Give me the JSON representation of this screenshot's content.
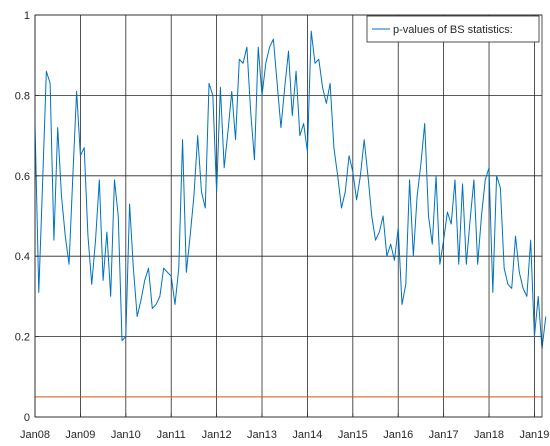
{
  "chart_data": {
    "type": "line",
    "xlim": [
      "2008-01",
      "2019-03"
    ],
    "ylim": [
      0,
      1
    ],
    "grid": true,
    "legend_placement": "top-right",
    "x_ticks": [
      "Jan08",
      "Jan09",
      "Jan10",
      "Jan11",
      "Jan12",
      "Jan13",
      "Jan14",
      "Jan15",
      "Jan16",
      "Jan17",
      "Jan18",
      "Jan19"
    ],
    "y_ticks": [
      "0",
      "0.2",
      "0.4",
      "0.6",
      "0.8",
      "1"
    ],
    "series": [
      {
        "name": "p-values of BS statistics:",
        "color": "#0072BD",
        "in_legend": true,
        "points": [
          [
            "2008-01",
            0.73
          ],
          [
            "2008-02",
            0.31
          ],
          [
            "2008-03",
            0.58
          ],
          [
            "2008-04",
            0.86
          ],
          [
            "2008-05",
            0.83
          ],
          [
            "2008-06",
            0.44
          ],
          [
            "2008-07",
            0.72
          ],
          [
            "2008-08",
            0.55
          ],
          [
            "2008-09",
            0.45
          ],
          [
            "2008-10",
            0.38
          ],
          [
            "2008-11",
            0.6
          ],
          [
            "2008-12",
            0.81
          ],
          [
            "2009-01",
            0.65
          ],
          [
            "2009-02",
            0.67
          ],
          [
            "2009-03",
            0.45
          ],
          [
            "2009-04",
            0.33
          ],
          [
            "2009-05",
            0.44
          ],
          [
            "2009-06",
            0.59
          ],
          [
            "2009-07",
            0.34
          ],
          [
            "2009-08",
            0.46
          ],
          [
            "2009-09",
            0.3
          ],
          [
            "2009-10",
            0.59
          ],
          [
            "2009-11",
            0.5
          ],
          [
            "2009-12",
            0.19
          ],
          [
            "2010-01",
            0.2
          ],
          [
            "2010-02",
            0.53
          ],
          [
            "2010-03",
            0.37
          ],
          [
            "2010-04",
            0.25
          ],
          [
            "2010-05",
            0.29
          ],
          [
            "2010-06",
            0.34
          ],
          [
            "2010-07",
            0.37
          ],
          [
            "2010-08",
            0.27
          ],
          [
            "2010-09",
            0.28
          ],
          [
            "2010-10",
            0.3
          ],
          [
            "2010-11",
            0.37
          ],
          [
            "2010-12",
            0.36
          ],
          [
            "2011-01",
            0.35
          ],
          [
            "2011-02",
            0.28
          ],
          [
            "2011-03",
            0.37
          ],
          [
            "2011-04",
            0.69
          ],
          [
            "2011-05",
            0.36
          ],
          [
            "2011-06",
            0.45
          ],
          [
            "2011-07",
            0.55
          ],
          [
            "2011-08",
            0.7
          ],
          [
            "2011-09",
            0.56
          ],
          [
            "2011-10",
            0.52
          ],
          [
            "2011-11",
            0.83
          ],
          [
            "2011-12",
            0.8
          ],
          [
            "2012-01",
            0.56
          ],
          [
            "2012-02",
            0.82
          ],
          [
            "2012-03",
            0.62
          ],
          [
            "2012-04",
            0.71
          ],
          [
            "2012-05",
            0.81
          ],
          [
            "2012-06",
            0.69
          ],
          [
            "2012-07",
            0.89
          ],
          [
            "2012-08",
            0.88
          ],
          [
            "2012-09",
            0.92
          ],
          [
            "2012-10",
            0.76
          ],
          [
            "2012-11",
            0.64
          ],
          [
            "2012-12",
            0.92
          ],
          [
            "2013-01",
            0.8
          ],
          [
            "2013-02",
            0.88
          ],
          [
            "2013-03",
            0.92
          ],
          [
            "2013-04",
            0.94
          ],
          [
            "2013-05",
            0.83
          ],
          [
            "2013-06",
            0.72
          ],
          [
            "2013-07",
            0.82
          ],
          [
            "2013-08",
            0.91
          ],
          [
            "2013-09",
            0.75
          ],
          [
            "2013-10",
            0.86
          ],
          [
            "2013-11",
            0.7
          ],
          [
            "2013-12",
            0.73
          ],
          [
            "2014-01",
            0.66
          ],
          [
            "2014-02",
            0.96
          ],
          [
            "2014-03",
            0.88
          ],
          [
            "2014-04",
            0.89
          ],
          [
            "2014-05",
            0.82
          ],
          [
            "2014-06",
            0.78
          ],
          [
            "2014-07",
            0.83
          ],
          [
            "2014-08",
            0.67
          ],
          [
            "2014-09",
            0.6
          ],
          [
            "2014-10",
            0.52
          ],
          [
            "2014-11",
            0.56
          ],
          [
            "2014-12",
            0.65
          ],
          [
            "2015-01",
            0.61
          ],
          [
            "2015-02",
            0.54
          ],
          [
            "2015-03",
            0.6
          ],
          [
            "2015-04",
            0.69
          ],
          [
            "2015-05",
            0.6
          ],
          [
            "2015-06",
            0.5
          ],
          [
            "2015-07",
            0.44
          ],
          [
            "2015-08",
            0.46
          ],
          [
            "2015-09",
            0.5
          ],
          [
            "2015-10",
            0.4
          ],
          [
            "2015-11",
            0.43
          ],
          [
            "2015-12",
            0.39
          ],
          [
            "2016-01",
            0.47
          ],
          [
            "2016-02",
            0.28
          ],
          [
            "2016-03",
            0.33
          ],
          [
            "2016-04",
            0.59
          ],
          [
            "2016-05",
            0.4
          ],
          [
            "2016-06",
            0.55
          ],
          [
            "2016-07",
            0.63
          ],
          [
            "2016-08",
            0.73
          ],
          [
            "2016-09",
            0.5
          ],
          [
            "2016-10",
            0.43
          ],
          [
            "2016-11",
            0.6
          ],
          [
            "2016-12",
            0.38
          ],
          [
            "2017-01",
            0.44
          ],
          [
            "2017-02",
            0.51
          ],
          [
            "2017-03",
            0.48
          ],
          [
            "2017-04",
            0.59
          ],
          [
            "2017-05",
            0.38
          ],
          [
            "2017-06",
            0.58
          ],
          [
            "2017-07",
            0.38
          ],
          [
            "2017-08",
            0.49
          ],
          [
            "2017-09",
            0.59
          ],
          [
            "2017-10",
            0.38
          ],
          [
            "2017-11",
            0.5
          ],
          [
            "2017-12",
            0.59
          ],
          [
            "2018-01",
            0.62
          ],
          [
            "2018-02",
            0.31
          ],
          [
            "2018-03",
            0.6
          ],
          [
            "2018-04",
            0.57
          ],
          [
            "2018-05",
            0.37
          ],
          [
            "2018-06",
            0.33
          ],
          [
            "2018-07",
            0.32
          ],
          [
            "2018-08",
            0.45
          ],
          [
            "2018-09",
            0.36
          ],
          [
            "2018-10",
            0.32
          ],
          [
            "2018-11",
            0.3
          ],
          [
            "2018-12",
            0.44
          ],
          [
            "2019-01",
            0.2
          ],
          [
            "2019-02",
            0.3
          ],
          [
            "2019-03",
            0.17
          ],
          [
            "2019-04",
            0.25
          ]
        ]
      },
      {
        "name": "",
        "color": "#D95319",
        "in_legend": false,
        "points": [
          [
            "2008-01",
            0.05
          ],
          [
            "2019-03",
            0.05
          ]
        ]
      }
    ]
  }
}
